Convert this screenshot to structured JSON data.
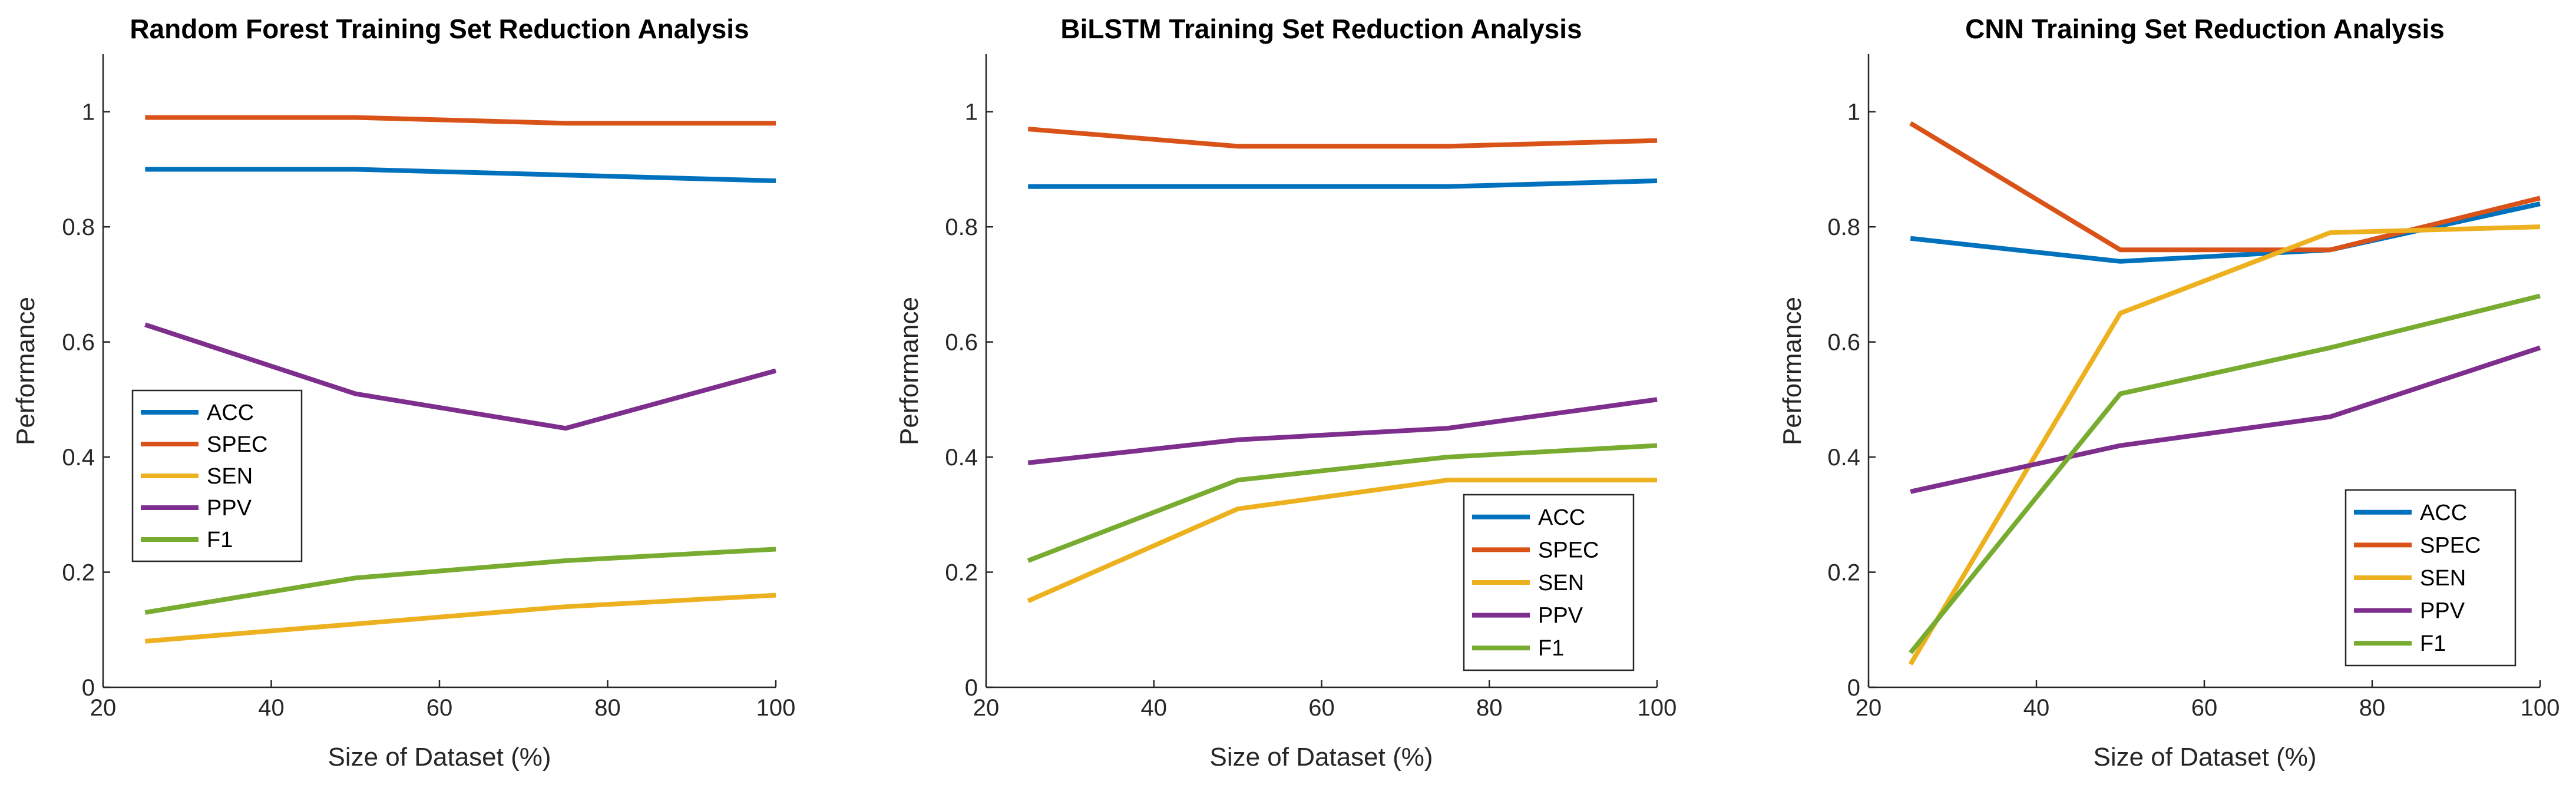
{
  "chart_data": [
    {
      "type": "line",
      "title": "Random Forest Training Set Reduction Analysis",
      "xlabel": "Size of Dataset (%)",
      "ylabel": "Performance",
      "xlim": [
        20,
        100
      ],
      "ylim": [
        0,
        1.1
      ],
      "xticks": [
        20,
        40,
        60,
        80,
        100
      ],
      "yticks": [
        0,
        0.2,
        0.4,
        0.6,
        0.8,
        1
      ],
      "x": [
        25,
        50,
        75,
        100
      ],
      "legend_position": "middle-left",
      "series": [
        {
          "name": "ACC",
          "color": "#0072BD",
          "values": [
            0.9,
            0.9,
            0.89,
            0.88
          ]
        },
        {
          "name": "SPEC",
          "color": "#D95319",
          "values": [
            0.99,
            0.99,
            0.98,
            0.98
          ]
        },
        {
          "name": "SEN",
          "color": "#EDB120",
          "values": [
            0.08,
            0.11,
            0.14,
            0.16
          ]
        },
        {
          "name": "PPV",
          "color": "#7E2F8E",
          "values": [
            0.63,
            0.51,
            0.45,
            0.55
          ]
        },
        {
          "name": "F1",
          "color": "#77AC30",
          "values": [
            0.13,
            0.19,
            0.22,
            0.24
          ]
        }
      ]
    },
    {
      "type": "line",
      "title": "BiLSTM Training Set Reduction Analysis",
      "xlabel": "Size of Dataset (%)",
      "ylabel": "Performance",
      "xlim": [
        20,
        100
      ],
      "ylim": [
        0,
        1.1
      ],
      "xticks": [
        20,
        40,
        60,
        80,
        100
      ],
      "yticks": [
        0,
        0.2,
        0.4,
        0.6,
        0.8,
        1
      ],
      "x": [
        25,
        50,
        75,
        100
      ],
      "legend_position": "bottom-right",
      "series": [
        {
          "name": "ACC",
          "color": "#0072BD",
          "values": [
            0.87,
            0.87,
            0.87,
            0.88
          ]
        },
        {
          "name": "SPEC",
          "color": "#D95319",
          "values": [
            0.97,
            0.94,
            0.94,
            0.95
          ]
        },
        {
          "name": "SEN",
          "color": "#EDB120",
          "values": [
            0.15,
            0.31,
            0.36,
            0.36
          ]
        },
        {
          "name": "PPV",
          "color": "#7E2F8E",
          "values": [
            0.39,
            0.43,
            0.45,
            0.5
          ]
        },
        {
          "name": "F1",
          "color": "#77AC30",
          "values": [
            0.22,
            0.36,
            0.4,
            0.42
          ]
        }
      ]
    },
    {
      "type": "line",
      "title": "CNN Training Set Reduction Analysis",
      "xlabel": "Size of Dataset (%)",
      "ylabel": "Performance",
      "xlim": [
        20,
        100
      ],
      "ylim": [
        0,
        1.1
      ],
      "xticks": [
        20,
        40,
        60,
        80,
        100
      ],
      "yticks": [
        0,
        0.2,
        0.4,
        0.6,
        0.8,
        1
      ],
      "x": [
        25,
        50,
        75,
        100
      ],
      "legend_position": "bottom-right",
      "series": [
        {
          "name": "ACC",
          "color": "#0072BD",
          "values": [
            0.78,
            0.74,
            0.76,
            0.84
          ]
        },
        {
          "name": "SPEC",
          "color": "#D95319",
          "values": [
            0.98,
            0.76,
            0.76,
            0.85
          ]
        },
        {
          "name": "SEN",
          "color": "#EDB120",
          "values": [
            0.04,
            0.65,
            0.79,
            0.8
          ]
        },
        {
          "name": "PPV",
          "color": "#7E2F8E",
          "values": [
            0.34,
            0.42,
            0.47,
            0.59
          ]
        },
        {
          "name": "F1",
          "color": "#77AC30",
          "values": [
            0.06,
            0.51,
            0.59,
            0.68
          ]
        }
      ]
    }
  ]
}
